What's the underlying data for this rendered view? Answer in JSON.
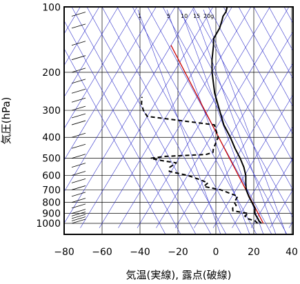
{
  "chart_data": {
    "type": "line",
    "xlabel": "気温(実線), 露点(破線)",
    "ylabel": "気圧(hPa)",
    "x_ticks": [
      -80,
      -60,
      -40,
      -20,
      0,
      20,
      40
    ],
    "x_tick_labels": [
      "−80",
      "−60",
      "−40",
      "−20",
      "0",
      "20",
      "40"
    ],
    "y_ticks": [
      100,
      200,
      300,
      400,
      500,
      600,
      700,
      800,
      900,
      1000
    ],
    "y_tick_labels": [
      "100",
      "200",
      "300",
      "400",
      "500",
      "600",
      "700",
      "800",
      "900",
      "1000"
    ],
    "xlim": [
      -80,
      40
    ],
    "ylim": [
      1050,
      100
    ],
    "y_scale": "log",
    "grid": true,
    "mixing_ratio_labels": [
      "1",
      "5",
      "10",
      "15",
      "20g"
    ],
    "series": [
      {
        "style": "solid",
        "color": "#000000",
        "points": [
          {
            "p": 1000,
            "t": 24.0
          },
          {
            "p": 975,
            "t": 22.0
          },
          {
            "p": 950,
            "t": 20.6
          },
          {
            "p": 925,
            "t": 19.0
          },
          {
            "p": 900,
            "t": 17.4
          },
          {
            "p": 850,
            "t": 15.8
          },
          {
            "p": 800,
            "t": 12.4
          },
          {
            "p": 750,
            "t": 8.8
          },
          {
            "p": 700,
            "t": 5.4
          },
          {
            "p": 650,
            "t": 3.0
          },
          {
            "p": 600,
            "t": 0.6
          },
          {
            "p": 550,
            "t": -3.0
          },
          {
            "p": 500,
            "t": -7.8
          },
          {
            "p": 450,
            "t": -13.6
          },
          {
            "p": 400,
            "t": -19.6
          },
          {
            "p": 350,
            "t": -27.0
          },
          {
            "p": 300,
            "t": -33.8
          },
          {
            "p": 250,
            "t": -41.8
          },
          {
            "p": 200,
            "t": -49.8
          },
          {
            "p": 175,
            "t": -53.8
          },
          {
            "p": 150,
            "t": -57.6
          },
          {
            "p": 140,
            "t": -59.6
          },
          {
            "p": 125,
            "t": -59.8
          },
          {
            "p": 115,
            "t": -61.0
          },
          {
            "p": 110,
            "t": -61.8
          },
          {
            "p": 105,
            "t": -61.6
          },
          {
            "p": 100,
            "t": -62.5
          }
        ]
      },
      {
        "style": "dashed",
        "color": "#000000",
        "points": [
          {
            "p": 1000,
            "t": 22.0
          },
          {
            "p": 975,
            "t": 20.0
          },
          {
            "p": 950,
            "t": 15.0
          },
          {
            "p": 925,
            "t": 13.0
          },
          {
            "p": 900,
            "t": 14.0
          },
          {
            "p": 875,
            "t": 5.0
          },
          {
            "p": 850,
            "t": 4.0
          },
          {
            "p": 825,
            "t": 5.0
          },
          {
            "p": 800,
            "t": 3.0
          },
          {
            "p": 775,
            "t": 3.0
          },
          {
            "p": 750,
            "t": 3.0
          },
          {
            "p": 700,
            "t": -8.0
          },
          {
            "p": 675,
            "t": -18.0
          },
          {
            "p": 650,
            "t": -17.0
          },
          {
            "p": 625,
            "t": -23.0
          },
          {
            "p": 600,
            "t": -30.0
          },
          {
            "p": 575,
            "t": -41.0
          },
          {
            "p": 550,
            "t": -42.0
          },
          {
            "p": 525,
            "t": -40.0
          },
          {
            "p": 510,
            "t": -50.0
          },
          {
            "p": 500,
            "t": -55.0
          },
          {
            "p": 490,
            "t": -48.0
          },
          {
            "p": 480,
            "t": -27.0
          },
          {
            "p": 470,
            "t": -24.0
          },
          {
            "p": 450,
            "t": -25.0
          },
          {
            "p": 400,
            "t": -26.0
          },
          {
            "p": 350,
            "t": -32.0
          },
          {
            "p": 320,
            "t": -70.0
          },
          {
            "p": 300,
            "t": -74.0
          },
          {
            "p": 280,
            "t": -77.0
          },
          {
            "p": 260,
            "t": -79.0
          }
        ]
      }
    ],
    "reference_lines": {
      "isotherm_color": "#3333cc",
      "red_line_color": "#cc0000",
      "red_line": [
        {
          "p": 1000,
          "t": 25.0
        },
        {
          "p": 150,
          "t": -80.0
        }
      ]
    }
  }
}
